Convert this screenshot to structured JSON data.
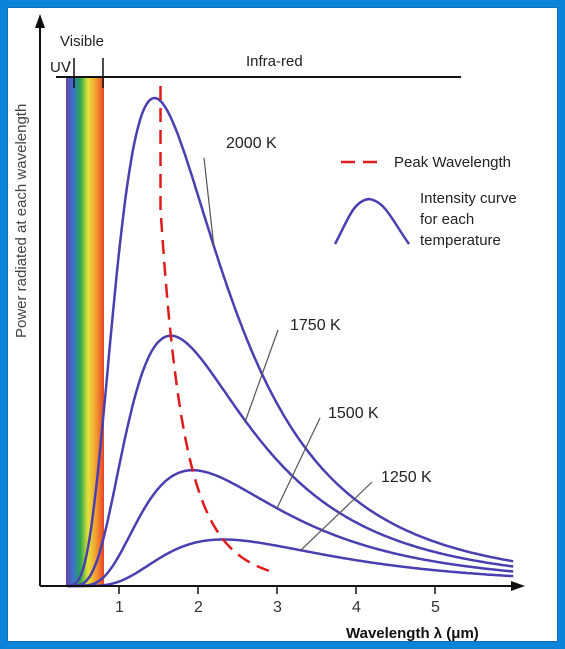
{
  "chart_data": {
    "type": "line",
    "title": "",
    "xlabel": "Wavelength λ (μm)",
    "ylabel": "Power radiated at each wavelength",
    "xlim": [
      0,
      6
    ],
    "ylim": [
      0,
      1
    ],
    "x_ticks": [
      "1",
      "2",
      "3",
      "4",
      "5"
    ],
    "regions": [
      {
        "label": "UV",
        "x": [
          0,
          0.45
        ]
      },
      {
        "label": "Visible",
        "x": [
          0.45,
          0.78
        ]
      },
      {
        "label": "Infra-red",
        "x": [
          0.78,
          5.5
        ]
      }
    ],
    "series": [
      {
        "name": "2000 K",
        "temperature": 2000,
        "color": "#4a3fb0"
      },
      {
        "name": "1750 K",
        "temperature": 1750,
        "color": "#4a3fb0"
      },
      {
        "name": "1500 K",
        "temperature": 1500,
        "color": "#4a3fb0"
      },
      {
        "name": "1250 K",
        "temperature": 1250,
        "color": "#4a3fb0"
      }
    ],
    "peak_wavelength": {
      "name": "Peak Wavelength",
      "color": "#e01b1b",
      "style": "dashed"
    },
    "legend": {
      "placement": "top-right",
      "entries": [
        "Peak Wavelength",
        "Intensity curve for each temperature"
      ]
    }
  },
  "legend_text": {
    "peak": "Peak Wavelength",
    "curve_line1": "Intensity curve",
    "curve_line2": "for each",
    "curve_line3": "temperature"
  },
  "region_text": {
    "uv": "UV",
    "visible": "Visible",
    "infrared": "Infra-red"
  },
  "axis_text": {
    "y": "Power radiated at each wavelength",
    "x": "Wavelength λ (μm)"
  },
  "colors": {
    "curve": "#4a3fb0",
    "peak": "#e01b1b",
    "frame_background": "#0b83d9"
  }
}
